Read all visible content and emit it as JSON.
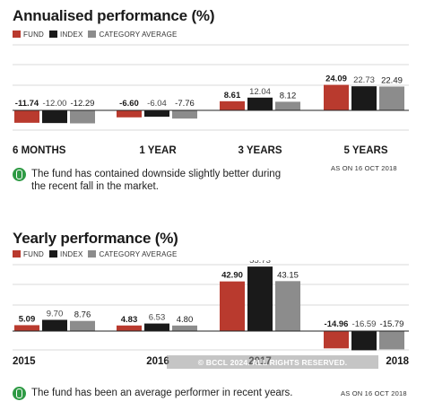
{
  "colors": {
    "fund": "#b93a2e",
    "index": "#1a1a1a",
    "category": "#8c8c8c",
    "note_icon": "#2e9a44"
  },
  "legend": {
    "fund": "FUND",
    "index": "INDEX",
    "category": "CATEGORY AVERAGE"
  },
  "annualised": {
    "title": "Annualised performance (%)",
    "note": "The fund has contained downside slightly better during the recent fall in the market.",
    "as_of": "AS ON 16 OCT 2018"
  },
  "yearly": {
    "title": "Yearly performance (%)",
    "note": "The fund has been an average performer in recent years.",
    "as_of": "AS ON 16 OCT 2018"
  },
  "watermark": "© BCCL 2024. ALL RIGHTS RESERVED.",
  "chart_data": [
    {
      "type": "bar",
      "title": "Annualised performance (%)",
      "categories": [
        "6 MONTHS",
        "1 YEAR",
        "3 YEARS",
        "5 YEARS"
      ],
      "series": [
        {
          "name": "FUND",
          "values": [
            -11.74,
            -6.6,
            8.61,
            24.09
          ],
          "labels": [
            "-11.74",
            "-6.60",
            "8.61",
            "24.09"
          ]
        },
        {
          "name": "INDEX",
          "values": [
            -12.0,
            -6.04,
            12.04,
            22.73
          ],
          "labels": [
            "-12.00",
            "-6.04",
            "12.04",
            "22.73"
          ]
        },
        {
          "name": "CATEGORY AVERAGE",
          "values": [
            -12.29,
            -7.76,
            8.12,
            22.49
          ],
          "labels": [
            "-12.29",
            "-7.76",
            "8.12",
            "22.49"
          ]
        }
      ]
    },
    {
      "type": "bar",
      "title": "Yearly performance (%)",
      "categories": [
        "2015",
        "2016",
        "2017",
        "2018"
      ],
      "series": [
        {
          "name": "FUND",
          "values": [
            5.09,
            4.83,
            42.9,
            -14.96
          ],
          "labels": [
            "5.09",
            "4.83",
            "42.90",
            "-14.96"
          ]
        },
        {
          "name": "INDEX",
          "values": [
            9.7,
            6.53,
            55.73,
            -16.59
          ],
          "labels": [
            "9.70",
            "6.53",
            "55.73",
            "-16.59"
          ]
        },
        {
          "name": "CATEGORY AVERAGE",
          "values": [
            8.76,
            4.8,
            43.15,
            -15.79
          ],
          "labels": [
            "8.76",
            "4.80",
            "43.15",
            "-15.79"
          ]
        }
      ]
    }
  ]
}
